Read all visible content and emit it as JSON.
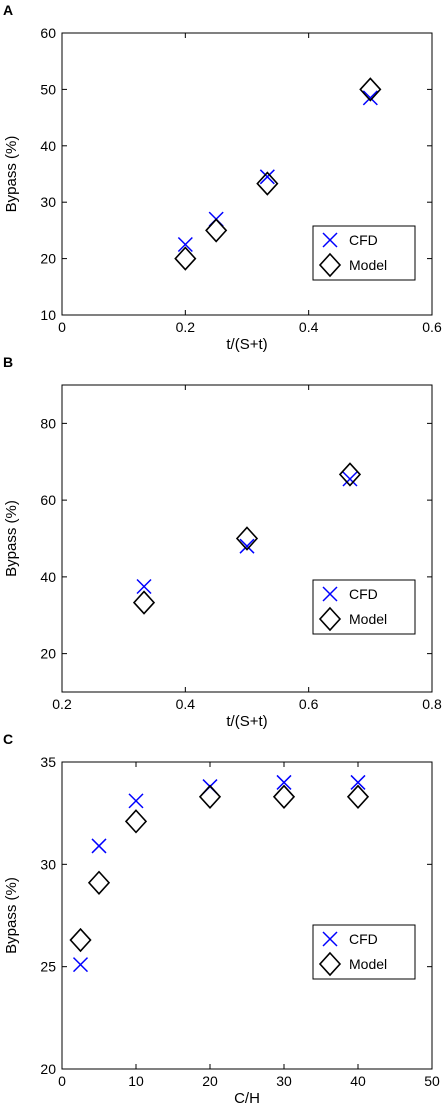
{
  "chart_data": [
    {
      "type": "scatter",
      "panel_label": "A",
      "xlabel": "t/(S+t)",
      "ylabel": "Bypass (%)",
      "xlim": [
        0,
        0.6
      ],
      "ylim": [
        10,
        60
      ],
      "xticks": [
        0,
        0.2,
        0.4,
        0.6
      ],
      "yticks": [
        10,
        20,
        30,
        40,
        50,
        60
      ],
      "xtick_labels": [
        "0",
        "0.2",
        "0.4",
        "0.6"
      ],
      "ytick_labels": [
        "10",
        "20",
        "30",
        "40",
        "50",
        "60"
      ],
      "legend_position": "lower-right",
      "grid": false,
      "series": [
        {
          "name": "CFD",
          "marker": "x",
          "color": "#0000ff",
          "x": [
            0.2,
            0.25,
            0.333,
            0.5
          ],
          "y": [
            22.5,
            27,
            34.5,
            48.5
          ]
        },
        {
          "name": "Model",
          "marker": "diamond",
          "color": "#000000",
          "x": [
            0.2,
            0.25,
            0.333,
            0.5
          ],
          "y": [
            20,
            25,
            33.3,
            50
          ]
        }
      ]
    },
    {
      "type": "scatter",
      "panel_label": "B",
      "xlabel": "t/(S+t)",
      "ylabel": "Bypass (%)",
      "xlim": [
        0.2,
        0.8
      ],
      "ylim": [
        10,
        90
      ],
      "xticks": [
        0.2,
        0.4,
        0.6,
        0.8
      ],
      "yticks": [
        20,
        40,
        60,
        80
      ],
      "xtick_labels": [
        "0.2",
        "0.4",
        "0.6",
        "0.8"
      ],
      "ytick_labels": [
        "20",
        "40",
        "60",
        "80"
      ],
      "legend_position": "lower-right",
      "grid": false,
      "series": [
        {
          "name": "CFD",
          "marker": "x",
          "color": "#0000ff",
          "x": [
            0.333,
            0.5,
            0.667
          ],
          "y": [
            37.5,
            48,
            65.5
          ]
        },
        {
          "name": "Model",
          "marker": "diamond",
          "color": "#000000",
          "x": [
            0.333,
            0.5,
            0.667
          ],
          "y": [
            33.3,
            50,
            66.7
          ]
        }
      ]
    },
    {
      "type": "scatter",
      "panel_label": "C",
      "xlabel": "C/H",
      "ylabel": "Bypass (%)",
      "xlim": [
        0,
        50
      ],
      "ylim": [
        20,
        35
      ],
      "xticks": [
        0,
        10,
        20,
        30,
        40,
        50
      ],
      "yticks": [
        20,
        25,
        30,
        35
      ],
      "xtick_labels": [
        "0",
        "10",
        "20",
        "30",
        "40",
        "50"
      ],
      "ytick_labels": [
        "20",
        "25",
        "30",
        "35"
      ],
      "legend_position": "lower-right",
      "grid": false,
      "series": [
        {
          "name": "CFD",
          "marker": "x",
          "color": "#0000ff",
          "x": [
            2.5,
            5,
            10,
            20,
            30,
            40
          ],
          "y": [
            25.1,
            30.9,
            33.1,
            33.8,
            34,
            34
          ]
        },
        {
          "name": "Model",
          "marker": "diamond",
          "color": "#000000",
          "x": [
            2.5,
            5,
            10,
            20,
            30,
            40
          ],
          "y": [
            26.3,
            29.1,
            32.1,
            33.3,
            33.3,
            33.3
          ]
        }
      ]
    }
  ]
}
